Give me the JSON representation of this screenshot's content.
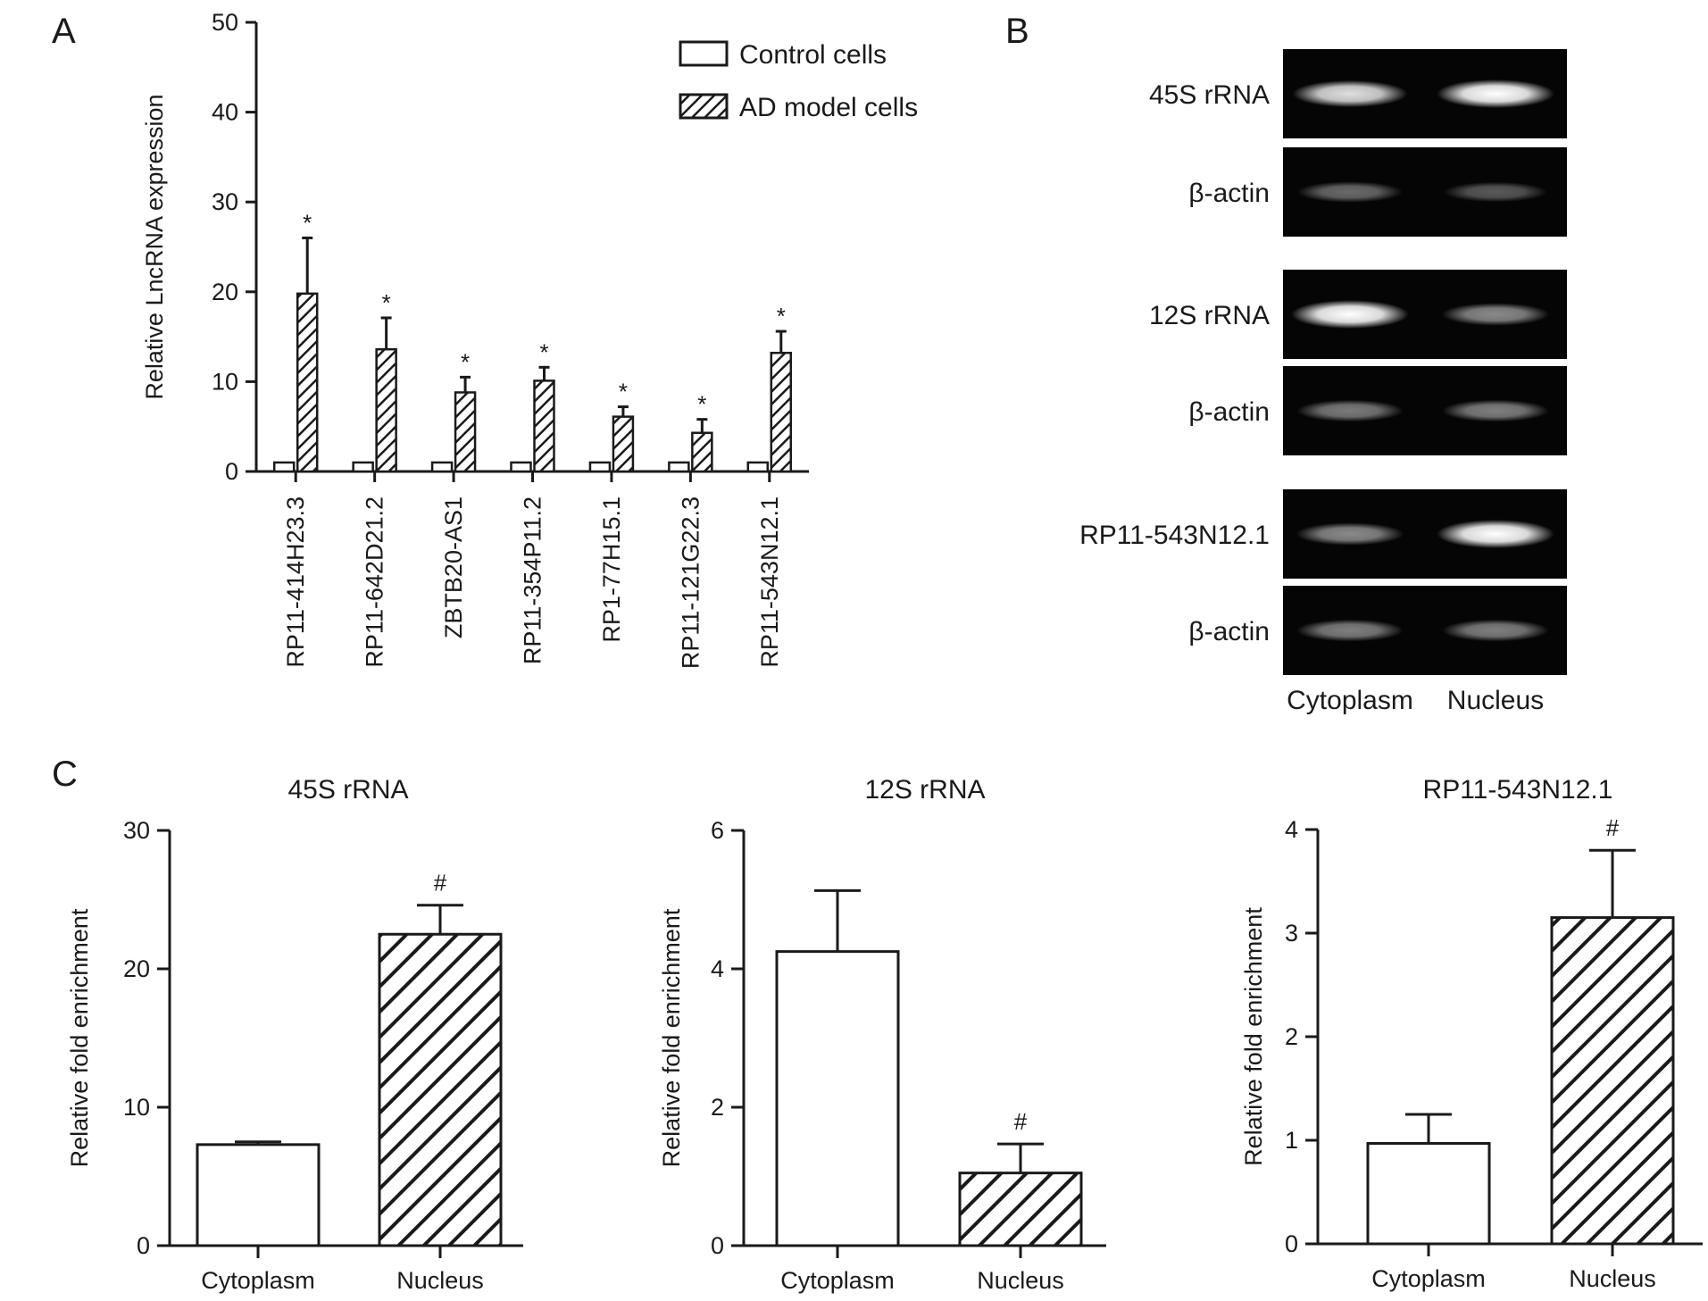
{
  "panel_letters": [
    "A",
    "B",
    "C"
  ],
  "colors": {
    "ink": "#1a1a1a",
    "gel_bg": "#050505",
    "band": "#ffffff",
    "bar_fill": "#ffffff"
  },
  "chart_data": [
    {
      "panel": "A",
      "type": "bar",
      "title": "",
      "ylabel": "Relative LncRNA expression",
      "xlabel": "",
      "ylim": [
        0,
        50
      ],
      "yticks": [
        0,
        10,
        20,
        30,
        40,
        50
      ],
      "categories": [
        "RP11-414H23.3",
        "RP11-642D21.2",
        "ZBTB20-AS1",
        "RP11-354P11.2",
        "RP1-77H15.1",
        "RP11-121G22.3",
        "RP11-543N12.1"
      ],
      "series": [
        {
          "name": "Control cells",
          "fill": "open",
          "values": [
            1,
            1,
            1,
            1,
            1,
            1,
            1
          ],
          "errors": [
            0,
            0,
            0,
            0,
            0,
            0,
            0
          ]
        },
        {
          "name": "AD model cells",
          "fill": "hatched",
          "values": [
            19.8,
            13.6,
            8.8,
            10.1,
            6.1,
            4.3,
            13.2
          ],
          "errors": [
            6.2,
            3.5,
            1.7,
            1.5,
            1.1,
            1.5,
            2.4
          ]
        }
      ],
      "significance": [
        "*",
        "*",
        "*",
        "*",
        "*",
        "*",
        "*"
      ],
      "legend": "top-right",
      "grid": false
    },
    {
      "panel": "C",
      "type": "bar",
      "title": "45S rRNA",
      "ylabel": "Relative fold enrichment",
      "xlabel": "",
      "ylim": [
        0,
        30
      ],
      "yticks": [
        0,
        10,
        20,
        30
      ],
      "categories": [
        "Cytoplasm",
        "Nucleus"
      ],
      "fills": [
        "open",
        "hatched"
      ],
      "values": [
        7.3,
        22.5
      ],
      "errors": [
        0.2,
        2.1
      ],
      "significance": [
        "",
        "#"
      ],
      "grid": false
    },
    {
      "panel": "C",
      "type": "bar",
      "title": "12S rRNA",
      "ylabel": "Relative fold enrichment",
      "xlabel": "",
      "ylim": [
        0,
        6
      ],
      "yticks": [
        0,
        2,
        4,
        6
      ],
      "categories": [
        "Cytoplasm",
        "Nucleus"
      ],
      "fills": [
        "open",
        "hatched"
      ],
      "values": [
        4.25,
        1.05
      ],
      "errors": [
        0.88,
        0.42
      ],
      "significance": [
        "",
        "#"
      ],
      "grid": false
    },
    {
      "panel": "C",
      "type": "bar",
      "title": "RP11-543N12.1",
      "ylabel": "Relative fold enrichment",
      "xlabel": "",
      "ylim": [
        0,
        4
      ],
      "yticks": [
        0,
        1,
        2,
        3,
        4
      ],
      "categories": [
        "Cytoplasm",
        "Nucleus"
      ],
      "fills": [
        "open",
        "hatched"
      ],
      "values": [
        0.97,
        3.15
      ],
      "errors": [
        0.28,
        0.65
      ],
      "significance": [
        "",
        "#"
      ],
      "grid": false
    }
  ],
  "gel": {
    "panel": "B",
    "lanes": [
      "Cytoplasm",
      "Nucleus"
    ],
    "groups": [
      {
        "target": {
          "label": "45S rRNA",
          "intensity": [
            0.85,
            1.0
          ]
        },
        "control": {
          "label": "β-actin",
          "intensity": [
            0.3,
            0.22
          ]
        }
      },
      {
        "target": {
          "label": "12S rRNA",
          "intensity": [
            1.0,
            0.45
          ]
        },
        "control": {
          "label": "β-actin",
          "intensity": [
            0.38,
            0.4
          ]
        }
      },
      {
        "target": {
          "label": "RP11-543N12.1",
          "intensity": [
            0.45,
            1.0
          ]
        },
        "control": {
          "label": "β-actin",
          "intensity": [
            0.4,
            0.4
          ]
        }
      }
    ]
  }
}
